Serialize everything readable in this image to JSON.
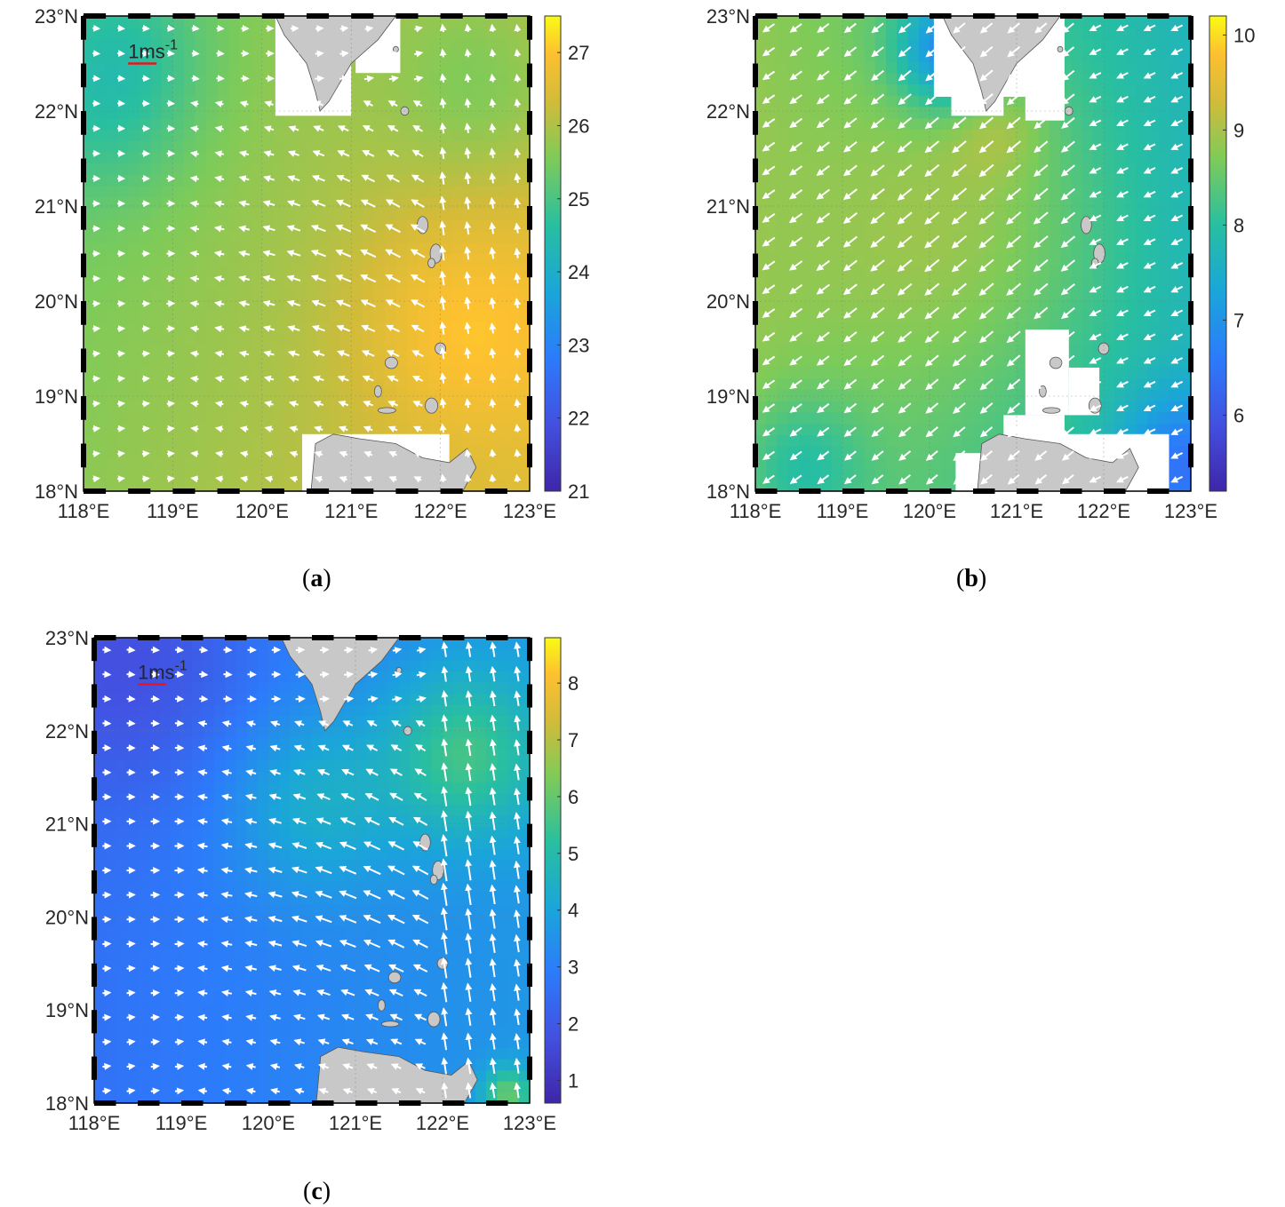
{
  "panels": [
    {
      "id": "a",
      "caption": "a",
      "field": "sst",
      "colorbar": {
        "min": 21,
        "max": 27.5,
        "ticks": [
          "21",
          "22",
          "23",
          "24",
          "25",
          "26",
          "27"
        ],
        "tick_values": [
          21,
          22,
          23,
          24,
          25,
          26,
          27
        ]
      },
      "x_ticks": [
        "118°E",
        "119°E",
        "120°E",
        "121°E",
        "122°E",
        "123°E"
      ],
      "y_ticks": [
        "18°N",
        "19°N",
        "20°N",
        "21°N",
        "22°N",
        "23°N"
      ],
      "lon_range": [
        118,
        123
      ],
      "lat_range": [
        18,
        23
      ],
      "arrows": "surface-current",
      "scale_label": "1ms",
      "scale_exp": "-1",
      "masks": "reanalysis-grid"
    },
    {
      "id": "b",
      "caption": "b",
      "field": "wind",
      "colorbar": {
        "min": 5.2,
        "max": 10.2,
        "ticks": [
          "6",
          "7",
          "8",
          "9",
          "10"
        ],
        "tick_values": [
          6,
          7,
          8,
          9,
          10
        ]
      },
      "x_ticks": [
        "118°E",
        "119°E",
        "120°E",
        "121°E",
        "122°E",
        "123°E"
      ],
      "y_ticks": [
        "18°N",
        "19°N",
        "20°N",
        "21°N",
        "22°N",
        "23°N"
      ],
      "lon_range": [
        118,
        123
      ],
      "lat_range": [
        18,
        23
      ],
      "arrows": "wind",
      "scale_label": "",
      "scale_exp": "",
      "masks": "wind-grid"
    },
    {
      "id": "c",
      "caption": "c",
      "field": "diff",
      "colorbar": {
        "min": 0.6,
        "max": 8.8,
        "ticks": [
          "1",
          "2",
          "3",
          "4",
          "5",
          "6",
          "7",
          "8"
        ],
        "tick_values": [
          1,
          2,
          3,
          4,
          5,
          6,
          7,
          8
        ]
      },
      "x_ticks": [
        "118°E",
        "119°E",
        "120°E",
        "121°E",
        "122°E",
        "123°E"
      ],
      "y_ticks": [
        "18°N",
        "19°N",
        "20°N",
        "21°N",
        "22°N",
        "23°N"
      ],
      "lon_range": [
        118,
        123
      ],
      "lat_range": [
        18,
        23
      ],
      "arrows": "surface-current",
      "scale_label": "1ms",
      "scale_exp": "-1",
      "masks": "none"
    }
  ],
  "colors": {
    "land": "#c8c8c8",
    "land_edge": "#555555",
    "arrow": "#ffffff",
    "scale_bar": "#e8141e",
    "frame": "#000000"
  }
}
